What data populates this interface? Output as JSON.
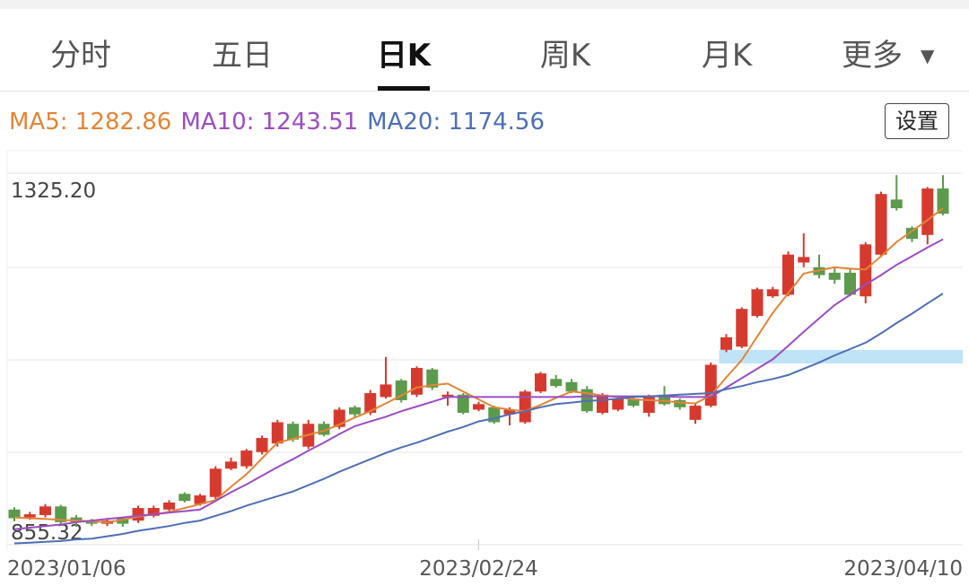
{
  "tabs": [
    "分时",
    "五日",
    "日K",
    "周K",
    "月K",
    "更多"
  ],
  "settings_button": "设置",
  "chart_data": {
    "type": "candlestick",
    "categories": [
      "2023/01/06",
      null,
      null,
      null,
      null,
      null,
      null,
      null,
      null,
      null,
      null,
      null,
      null,
      null,
      null,
      null,
      null,
      null,
      null,
      null,
      null,
      null,
      null,
      null,
      null,
      null,
      null,
      null,
      null,
      null,
      "2023/02/24",
      null,
      null,
      null,
      null,
      null,
      null,
      null,
      null,
      null,
      null,
      null,
      null,
      null,
      null,
      null,
      null,
      null,
      null,
      null,
      null,
      null,
      null,
      null,
      null,
      null,
      null,
      null,
      null,
      null,
      "2023/04/10"
    ],
    "open": [
      900,
      890,
      893,
      904,
      890,
      886,
      882,
      889,
      886,
      892,
      900,
      920,
      907,
      916,
      952,
      955,
      973,
      984,
      1009,
      980,
      1009,
      1005,
      1030,
      1023,
      1043,
      1064,
      1046,
      1078,
      1043,
      1046,
      1027,
      1030,
      1021,
      1011,
      1050,
      1066,
      1062,
      1053,
      1023,
      1027,
      1041,
      1023,
      1046,
      1039,
      1014,
      1032,
      1103,
      1107,
      1146,
      1171,
      1173,
      1214,
      1208,
      1201,
      1201,
      1171,
      1224,
      1294,
      1258,
      1249,
      1308
    ],
    "high": [
      903,
      897,
      907,
      906,
      893,
      888,
      889,
      890,
      905,
      905,
      912,
      922,
      920,
      955,
      966,
      977,
      994,
      1014,
      1012,
      1014,
      1012,
      1030,
      1032,
      1052,
      1094,
      1066,
      1082,
      1080,
      1050,
      1048,
      1037,
      1032,
      1030,
      1052,
      1075,
      1071,
      1066,
      1057,
      1048,
      1043,
      1043,
      1046,
      1057,
      1041,
      1036,
      1087,
      1123,
      1157,
      1182,
      1183,
      1228,
      1251,
      1224,
      1208,
      1205,
      1240,
      1304,
      1325,
      1260,
      1310,
      1325
    ],
    "low": [
      885,
      887,
      890,
      880,
      878,
      879,
      879,
      878,
      883,
      890,
      897,
      909,
      905,
      913,
      950,
      952,
      970,
      980,
      986,
      977,
      993,
      1002,
      1018,
      1020,
      1041,
      1036,
      1043,
      1052,
      1032,
      1021,
      1025,
      1009,
      1007,
      1009,
      1048,
      1055,
      1048,
      1023,
      1021,
      1025,
      1030,
      1018,
      1032,
      1027,
      1009,
      1030,
      1100,
      1105,
      1144,
      1169,
      1171,
      1208,
      1194,
      1187,
      1171,
      1162,
      1221,
      1280,
      1240,
      1237,
      1274
    ],
    "close": [
      889,
      894,
      904,
      884,
      884,
      882,
      886,
      882,
      902,
      902,
      909,
      911,
      918,
      952,
      961,
      975,
      991,
      1011,
      989,
      1009,
      995,
      1027,
      1021,
      1048,
      1059,
      1039,
      1080,
      1055,
      1046,
      1023,
      1034,
      1011,
      1027,
      1050,
      1073,
      1057,
      1050,
      1025,
      1046,
      1041,
      1032,
      1043,
      1034,
      1030,
      1032,
      1084,
      1119,
      1155,
      1180,
      1180,
      1224,
      1221,
      1198,
      1192,
      1173,
      1237,
      1301,
      1283,
      1244,
      1308,
      1276
    ],
    "up_color": "#d63a2e",
    "down_color": "#5c9a4c",
    "lines": [
      {
        "legend_label": "MA5: 1282.86",
        "color": "#e38535",
        "values": [
          890,
          889,
          888,
          887,
          886,
          885,
          884,
          887,
          891,
          894,
          897,
          902,
          907,
          912,
          929,
          945,
          965,
          985,
          990,
          995,
          1000,
          1008,
          1017,
          1025,
          1035,
          1045,
          1055,
          1058,
          1060,
          1050,
          1040,
          1030,
          1027,
          1025,
          1033,
          1042,
          1050,
          1048,
          1045,
          1043,
          1040,
          1039,
          1038,
          1036,
          1035,
          1045,
          1068,
          1090,
          1120,
          1150,
          1175,
          1200,
          1204,
          1208,
          1206,
          1205,
          1222,
          1240,
          1254,
          1268,
          1282.86
        ]
      },
      {
        "legend_label": "MA10: 1243.51",
        "color": "#9c4cc4",
        "values": [
          875,
          877,
          879,
          881,
          884,
          886,
          888,
          890,
          892,
          894,
          896,
          898,
          900,
          911,
          922,
          932,
          943,
          954,
          964,
          975,
          985,
          996,
          1006,
          1012,
          1018,
          1025,
          1031,
          1037,
          1043,
          1043,
          1043,
          1043,
          1043,
          1043,
          1043,
          1043,
          1043,
          1044,
          1044,
          1044,
          1044,
          1044,
          1044,
          1043,
          1043,
          1043,
          1055,
          1067,
          1079,
          1091,
          1108,
          1126,
          1143,
          1160,
          1173,
          1186,
          1198,
          1211,
          1222,
          1233,
          1243.51
        ]
      },
      {
        "legend_label": "MA20: 1174.56",
        "color": "#4d6fb6",
        "values": [
          857,
          858,
          859,
          860,
          862,
          863,
          866,
          869,
          873,
          876,
          879,
          883,
          886,
          892,
          898,
          905,
          911,
          917,
          923,
          931,
          939,
          948,
          956,
          964,
          972,
          979,
          985,
          992,
          999,
          1005,
          1012,
          1016,
          1021,
          1025,
          1030,
          1034,
          1036,
          1038,
          1039,
          1041,
          1043,
          1044,
          1045,
          1046,
          1047,
          1048,
          1053,
          1057,
          1062,
          1066,
          1071,
          1079,
          1087,
          1096,
          1104,
          1112,
          1124,
          1137,
          1149,
          1162,
          1174.56
        ]
      }
    ],
    "band": {
      "low": 1085.7,
      "high": 1102.8,
      "from": 46,
      "color": "#bfe3f7"
    },
    "ylim": [
      855.32,
      1325.2
    ],
    "yticks": [
      {
        "value": 1325.2,
        "label": "1325.20"
      },
      {
        "value": 855.32,
        "label": "855.32"
      }
    ],
    "gridlines": [
      1207.73,
      1090.26,
      972.79
    ]
  }
}
